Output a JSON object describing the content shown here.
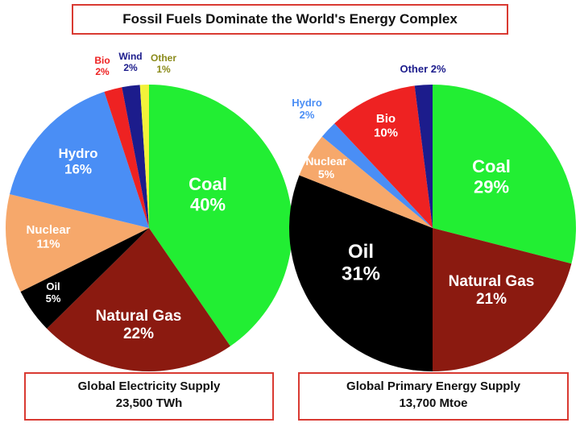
{
  "title": "Fossil Fuels Dominate the World's Energy Complex",
  "chart_data": [
    {
      "type": "pie",
      "caption": [
        "Global Electricity Supply",
        "23,500 TWh"
      ],
      "slices": [
        {
          "name": "Coal",
          "pct": "40%",
          "value": 40,
          "color": "#22ee33"
        },
        {
          "name": "Natural Gas",
          "pct": "22%",
          "value": 22,
          "color": "#8b1a10"
        },
        {
          "name": "Oil",
          "pct": "5%",
          "value": 5,
          "color": "#000000"
        },
        {
          "name": "Nuclear",
          "pct": "11%",
          "value": 11,
          "color": "#f6a86b"
        },
        {
          "name": "Hydro",
          "pct": "16%",
          "value": 16,
          "color": "#4a8ef5"
        },
        {
          "name": "Bio",
          "pct": "2%",
          "value": 2,
          "color": "#ee2222"
        },
        {
          "name": "Wind",
          "pct": "2%",
          "value": 2,
          "color": "#1c1c8c"
        },
        {
          "name": "Other",
          "pct": "1%",
          "value": 1,
          "color": "#f2f23a"
        }
      ]
    },
    {
      "type": "pie",
      "caption": [
        "Global Primary Energy Supply",
        "13,700 Mtoe"
      ],
      "slices": [
        {
          "name": "Coal",
          "pct": "29%",
          "value": 29,
          "color": "#22ee33"
        },
        {
          "name": "Natural Gas",
          "pct": "21%",
          "value": 21,
          "color": "#8b1a10"
        },
        {
          "name": "Oil",
          "pct": "31%",
          "value": 31,
          "color": "#000000"
        },
        {
          "name": "Nuclear",
          "pct": "5%",
          "value": 5,
          "color": "#f6a86b"
        },
        {
          "name": "Hydro",
          "pct": "2%",
          "value": 2,
          "color": "#4a8ef5"
        },
        {
          "name": "Bio",
          "pct": "10%",
          "value": 10,
          "color": "#ee2222"
        },
        {
          "name": "Other",
          "pct": "2%",
          "value": 2,
          "color": "#1c1c8c"
        }
      ]
    }
  ]
}
